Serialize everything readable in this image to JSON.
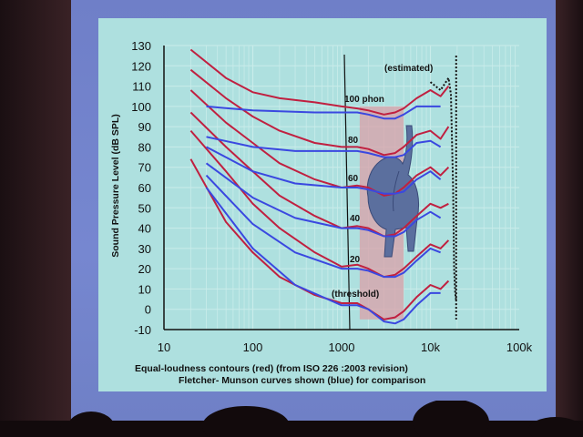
{
  "chart_data": {
    "type": "line",
    "title": "",
    "xlabel": "",
    "ylabel": "Sound Pressure Level (dB SPL)",
    "x_scale": "log",
    "xlim": [
      10,
      100000
    ],
    "ylim": [
      -10,
      130
    ],
    "x_ticks": [
      "10",
      "100",
      "1000",
      "10k",
      "100k"
    ],
    "y_ticks": [
      "130",
      "120",
      "110",
      "100",
      "90",
      "80",
      "70",
      "60",
      "50",
      "40",
      "30",
      "20",
      "10",
      "0",
      "-10"
    ],
    "caption_lines": [
      "Equal-loudness contours (red) (from ISO 226 :2003 revision)",
      "Fletcher- Munson curves shown (blue) for comparison"
    ],
    "annotations": {
      "estimated": "(estimated)",
      "threshold": "(threshold)",
      "phon_100": "100 phon",
      "phon_80": "80",
      "phon_60": "60",
      "phon_40": "40",
      "phon_20": "20"
    },
    "colors": {
      "red": "#c02040",
      "blue": "#3a48e0",
      "panel": "#aee0df",
      "grid": "#c9ecea",
      "highlight": "#d9a0a8"
    },
    "series": [
      {
        "name": "ISO 226 100 phon",
        "color": "red",
        "x": [
          20,
          50,
          100,
          200,
          500,
          1000,
          1500,
          2000,
          3000,
          4000,
          5000,
          7000,
          10000,
          13000,
          16000
        ],
        "y": [
          128,
          114,
          107,
          104,
          102,
          100,
          99,
          98,
          96,
          97,
          99,
          104,
          108,
          105,
          110
        ]
      },
      {
        "name": "ISO 226 80 phon",
        "color": "red",
        "x": [
          20,
          50,
          100,
          200,
          500,
          1000,
          1500,
          2000,
          3000,
          4000,
          5000,
          7000,
          10000,
          13000,
          16000
        ],
        "y": [
          118,
          104,
          95,
          88,
          82,
          80,
          80,
          79,
          76,
          77,
          80,
          86,
          88,
          84,
          90
        ]
      },
      {
        "name": "ISO 226 60 phon",
        "color": "red",
        "x": [
          20,
          50,
          100,
          200,
          500,
          1000,
          1500,
          2000,
          3000,
          4000,
          5000,
          7000,
          10000,
          13000,
          16000
        ],
        "y": [
          108,
          92,
          82,
          72,
          64,
          60,
          61,
          60,
          56,
          57,
          60,
          66,
          70,
          66,
          70
        ]
      },
      {
        "name": "ISO 226 40 phon",
        "color": "red",
        "x": [
          20,
          50,
          100,
          200,
          500,
          1000,
          1500,
          2000,
          3000,
          4000,
          5000,
          7000,
          10000,
          13000,
          16000
        ],
        "y": [
          97,
          80,
          68,
          56,
          46,
          40,
          41,
          40,
          36,
          37,
          40,
          46,
          52,
          50,
          52
        ]
      },
      {
        "name": "ISO 226 20 phon",
        "color": "red",
        "x": [
          20,
          50,
          100,
          200,
          500,
          1000,
          1500,
          2000,
          3000,
          4000,
          5000,
          7000,
          10000,
          13000,
          16000
        ],
        "y": [
          88,
          68,
          52,
          40,
          28,
          21,
          22,
          20,
          16,
          17,
          20,
          26,
          32,
          30,
          34
        ]
      },
      {
        "name": "ISO 226 threshold",
        "color": "red",
        "x": [
          20,
          50,
          100,
          200,
          500,
          1000,
          1500,
          2000,
          3000,
          4000,
          5000,
          7000,
          10000,
          13000,
          16000
        ],
        "y": [
          74,
          43,
          28,
          16,
          7,
          3,
          3,
          0,
          -5,
          -4,
          -1,
          6,
          12,
          10,
          14
        ]
      },
      {
        "name": "Fletcher-Munson 100 phon",
        "color": "blue",
        "x": [
          30,
          100,
          500,
          1000,
          1500,
          2000,
          3000,
          4000,
          5000,
          7000,
          10000,
          13000
        ],
        "y": [
          100,
          98,
          97,
          97,
          97,
          96,
          94,
          94,
          96,
          100,
          100,
          100
        ]
      },
      {
        "name": "Fletcher-Munson 80 phon",
        "color": "blue",
        "x": [
          30,
          100,
          300,
          1000,
          1500,
          2000,
          3000,
          4000,
          5000,
          7000,
          10000,
          13000
        ],
        "y": [
          85,
          80,
          78,
          78,
          78,
          77,
          75,
          75,
          76,
          82,
          83,
          80
        ]
      },
      {
        "name": "Fletcher-Munson 60 phon",
        "color": "blue",
        "x": [
          30,
          100,
          300,
          1000,
          1500,
          2000,
          3000,
          4000,
          5000,
          7000,
          10000,
          13000
        ],
        "y": [
          80,
          68,
          62,
          60,
          60,
          59,
          57,
          57,
          58,
          64,
          68,
          64
        ]
      },
      {
        "name": "Fletcher-Munson 40 phon",
        "color": "blue",
        "x": [
          30,
          100,
          300,
          1000,
          1500,
          2000,
          3000,
          4000,
          5000,
          7000,
          10000,
          13000
        ],
        "y": [
          72,
          55,
          45,
          40,
          40,
          39,
          36,
          36,
          38,
          44,
          48,
          45
        ]
      },
      {
        "name": "Fletcher-Munson 20 phon",
        "color": "blue",
        "x": [
          30,
          100,
          300,
          1000,
          1500,
          2000,
          3000,
          4000,
          5000,
          7000,
          10000,
          13000
        ],
        "y": [
          66,
          42,
          28,
          20,
          20,
          19,
          16,
          16,
          18,
          24,
          30,
          28
        ]
      },
      {
        "name": "Fletcher-Munson threshold",
        "color": "blue",
        "x": [
          30,
          100,
          300,
          1000,
          1500,
          2000,
          3000,
          4000,
          5000,
          7000,
          10000,
          13000
        ],
        "y": [
          60,
          30,
          12,
          2,
          2,
          0,
          -6,
          -7,
          -5,
          2,
          8,
          8
        ]
      }
    ],
    "estimated_line": {
      "x": [
        10000,
        13000,
        16000,
        17000,
        18000,
        18500,
        19000,
        19500
      ],
      "y": [
        112,
        108,
        114,
        106,
        60,
        20,
        8,
        4
      ]
    },
    "highlight_band_x": [
      1600,
      5000
    ],
    "grid": true
  }
}
